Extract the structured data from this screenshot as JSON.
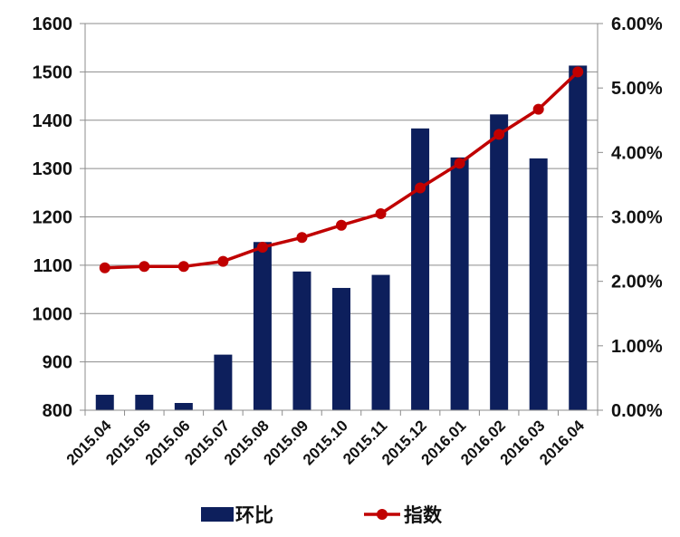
{
  "chart_data": {
    "type": "bar+line",
    "title": "",
    "xlabel": "",
    "ylabel_left": "",
    "ylabel_right": "",
    "categories": [
      "2015.04",
      "2015.05",
      "2015.06",
      "2015.07",
      "2015.08",
      "2015.09",
      "2015.10",
      "2015.11",
      "2015.12",
      "2016.01",
      "2016.02",
      "2016.03",
      "2016.04"
    ],
    "y_left": {
      "min": 800,
      "max": 1600,
      "step": 100,
      "ticks": [
        "800",
        "900",
        "1000",
        "1100",
        "1200",
        "1300",
        "1400",
        "1500",
        "1600"
      ]
    },
    "y_right": {
      "min": 0,
      "max": 0.06,
      "step": 0.01,
      "ticks": [
        "0.00%",
        "1.00%",
        "2.00%",
        "3.00%",
        "4.00%",
        "5.00%",
        "6.00%"
      ]
    },
    "grid": true,
    "legend_position": "bottom",
    "series": [
      {
        "name": "环比",
        "kind": "bar",
        "axis": "left",
        "color": "#0d1f5c",
        "values": [
          832,
          832,
          815,
          915,
          1148,
          1087,
          1053,
          1080,
          1383,
          1323,
          1412,
          1321,
          1513
        ]
      },
      {
        "name": "指数",
        "kind": "line",
        "axis": "right",
        "color": "#c00000",
        "values": [
          0.0221,
          0.0223,
          0.0223,
          0.0231,
          0.0253,
          0.0268,
          0.0287,
          0.0305,
          0.0345,
          0.0383,
          0.0428,
          0.0467,
          0.0525
        ]
      }
    ]
  }
}
